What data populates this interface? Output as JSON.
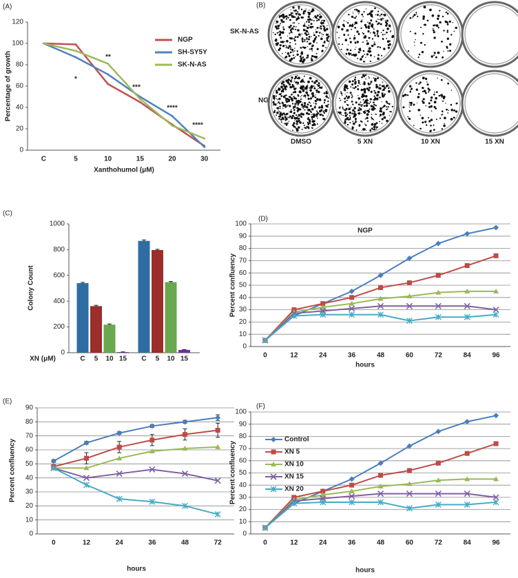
{
  "chart_data": [
    {
      "type": "line",
      "panel_label": "(A)",
      "y_label": "Percentage of growth",
      "x_label": "Xanthohumol (μM)",
      "categories": [
        "C",
        "5",
        "10",
        "15",
        "20",
        "30"
      ],
      "ylim": [
        0,
        120
      ],
      "yticks": [
        0,
        20,
        40,
        60,
        80,
        100,
        120
      ],
      "grid": false,
      "legend": "top-right",
      "series": [
        {
          "name": "NGP",
          "color": "#c0504d",
          "values": [
            100,
            99,
            62,
            45,
            24,
            4
          ]
        },
        {
          "name": "SH-SY5Y",
          "color": "#4f81bd",
          "values": [
            100,
            87,
            71,
            50,
            32,
            3
          ]
        },
        {
          "name": "SK-N-AS",
          "color": "#9bbb59",
          "values": [
            100,
            93,
            81,
            48,
            23,
            11
          ]
        }
      ],
      "annotations": [
        "*",
        "**",
        "***",
        "****",
        "****"
      ]
    },
    {
      "type": "image",
      "panel_label": "(B)",
      "row_labels": [
        "SK-N-AS",
        "NGP"
      ],
      "column_labels": [
        "DMSO",
        "5 XN",
        "10 XN",
        "15 XN"
      ]
    },
    {
      "type": "bar",
      "panel_label": "(C)",
      "y_label": "Colony Count",
      "x_label": "XN (μM)",
      "categories": [
        "C",
        "5",
        "10",
        "15",
        "C",
        "5",
        "10",
        "15"
      ],
      "values": [
        540,
        362,
        218,
        5,
        868,
        797,
        548,
        22
      ],
      "errors": [
        6,
        6,
        5,
        2,
        8,
        6,
        5,
        2
      ],
      "colors": [
        "#2e6da4",
        "#9b2d2a",
        "#6aa84f",
        "#7030a0",
        "#2e6da4",
        "#9b2d2a",
        "#6aa84f",
        "#7030a0"
      ],
      "ylim": [
        0,
        1000
      ],
      "yticks": [
        0,
        200,
        400,
        600,
        800,
        1000
      ],
      "grid": false
    },
    {
      "type": "line",
      "panel_label": "(D)",
      "title": "NGP",
      "y_label": "Percent confluency",
      "x_label": "hours",
      "categories": [
        "0",
        "12",
        "24",
        "36",
        "48",
        "60",
        "72",
        "84",
        "96"
      ],
      "ylim": [
        0,
        100
      ],
      "yticks": [
        0,
        10,
        20,
        30,
        40,
        50,
        60,
        70,
        80,
        90,
        100
      ],
      "grid": true,
      "series": [
        {
          "color": "#4a7ebb",
          "marker": "diamond",
          "values": [
            5,
            25,
            35,
            45,
            58,
            72,
            84,
            92,
            97
          ]
        },
        {
          "color": "#be4b48",
          "marker": "square",
          "values": [
            5,
            30,
            35,
            40,
            48,
            52,
            58,
            66,
            74
          ]
        },
        {
          "color": "#98b954",
          "marker": "triangle",
          "values": [
            5,
            28,
            32,
            35,
            39,
            41,
            44,
            45,
            45
          ]
        },
        {
          "color": "#7d5fa0",
          "marker": "x",
          "values": [
            5,
            27,
            29,
            31,
            33,
            33,
            33,
            33,
            30
          ]
        },
        {
          "color": "#46aac5",
          "marker": "star",
          "values": [
            5,
            25,
            26,
            26,
            26,
            21,
            24,
            24,
            26
          ]
        }
      ]
    },
    {
      "type": "line",
      "panel_label": "(E)",
      "y_label": "Percent confluency",
      "x_label": "hours",
      "categories": [
        "0",
        "12",
        "24",
        "36",
        "48",
        "72"
      ],
      "ylim": [
        0,
        90
      ],
      "yticks": [
        0,
        10,
        20,
        30,
        40,
        50,
        60,
        70,
        80,
        90
      ],
      "grid": true,
      "series": [
        {
          "color": "#4a7ebb",
          "marker": "diamond",
          "values": [
            52,
            65,
            72,
            77,
            80,
            83
          ],
          "errors": [
            1,
            1,
            1,
            1,
            1,
            2
          ]
        },
        {
          "color": "#be4b48",
          "marker": "square",
          "values": [
            48,
            54,
            62,
            67,
            71,
            74
          ],
          "errors": [
            1,
            4,
            4,
            4,
            4,
            5
          ]
        },
        {
          "color": "#98b954",
          "marker": "triangle",
          "values": [
            47,
            47,
            54,
            59,
            61,
            62
          ]
        },
        {
          "color": "#7d5fa0",
          "marker": "x",
          "values": [
            47,
            40,
            43,
            46,
            43,
            38
          ]
        },
        {
          "color": "#46aac5",
          "marker": "star",
          "values": [
            47,
            35,
            25,
            23,
            20,
            14
          ]
        }
      ]
    },
    {
      "type": "line",
      "panel_label": "(F)",
      "y_label": "Percent confluency",
      "x_label": "hours",
      "categories": [
        "0",
        "12",
        "24",
        "36",
        "48",
        "60",
        "72",
        "84",
        "96"
      ],
      "ylim": [
        0,
        100
      ],
      "yticks": [
        0,
        10,
        20,
        30,
        40,
        50,
        60,
        70,
        80,
        90,
        100
      ],
      "grid": true,
      "legend": "top-left",
      "series": [
        {
          "name": "Control",
          "color": "#4a7ebb",
          "marker": "diamond",
          "values": [
            5,
            25,
            35,
            45,
            58,
            72,
            84,
            92,
            97
          ]
        },
        {
          "name": "XN 5",
          "color": "#be4b48",
          "marker": "square",
          "values": [
            5,
            30,
            35,
            40,
            48,
            52,
            58,
            66,
            74
          ]
        },
        {
          "name": "XN 10",
          "color": "#98b954",
          "marker": "triangle",
          "values": [
            5,
            28,
            32,
            35,
            39,
            41,
            44,
            45,
            45
          ]
        },
        {
          "name": "XN 15",
          "color": "#7d5fa0",
          "marker": "x",
          "values": [
            5,
            27,
            29,
            31,
            33,
            33,
            33,
            33,
            30
          ]
        },
        {
          "name": "XN 20",
          "color": "#46aac5",
          "marker": "star",
          "values": [
            5,
            25,
            26,
            26,
            26,
            21,
            24,
            24,
            26
          ]
        }
      ]
    }
  ]
}
